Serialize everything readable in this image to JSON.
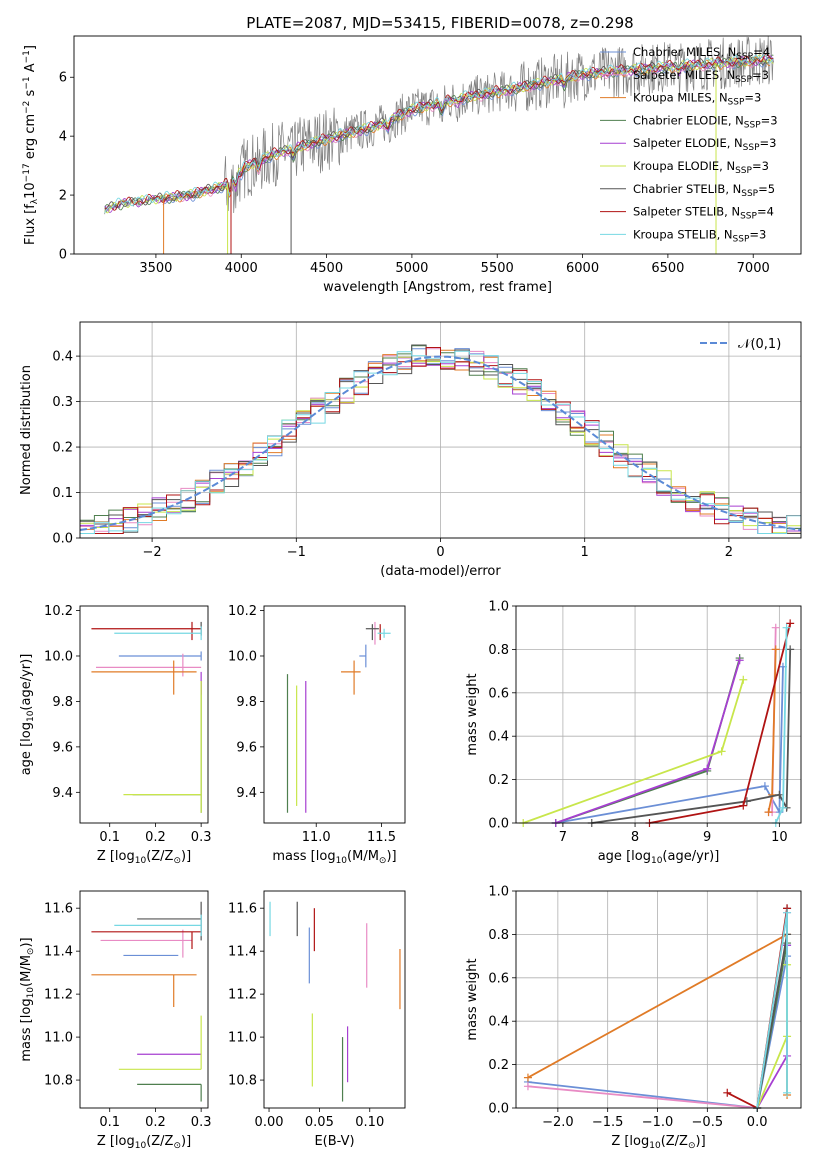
{
  "colors": {
    "Chabrier MILES": "#6b8fd6",
    "Salpeter MILES": "#e88bc4",
    "Kroupa MILES": "#e07b27",
    "Chabrier ELODIE": "#4f7f4f",
    "Salpeter ELODIE": "#a63fd1",
    "Kroupa ELODIE": "#c8e64b",
    "Chabrier STELIB": "#555555",
    "Salpeter STELIB": "#b01313",
    "Kroupa STELIB": "#76d8e3",
    "data": "#808080",
    "normal": "#5b8ad6"
  },
  "chart_data": [
    {
      "type": "line",
      "title": "PLATE=2087, MJD=53415, FIBERID=0078, z=0.298",
      "xlabel": "wavelength [Angstrom, rest frame]",
      "ylabel": "Flux [f$_\\lambda$10$^{-17}$ erg cm$^{-2}$ s$^{-1}$ A$^{-1}$]",
      "xlim": [
        3020,
        7280
      ],
      "ylim": [
        0,
        7.4
      ],
      "xticks": [
        3500,
        4000,
        4500,
        5000,
        5500,
        6000,
        6500,
        7000
      ],
      "yticks": [
        0,
        2,
        4,
        6
      ],
      "legend_position": "upper right",
      "series_labels": [
        "Chabrier MILES, N$_{SSP}$=4",
        "Salpeter MILES, N$_{SSP}$=3",
        "Kroupa MILES, N$_{SSP}$=3",
        "Chabrier ELODIE, N$_{SSP}$=3",
        "Salpeter ELODIE, N$_{SSP}$=3",
        "Kroupa ELODIE, N$_{SSP}$=3",
        "Chabrier STELIB, N$_{SSP}$=5",
        "Salpeter STELIB, N$_{SSP}$=4",
        "Kroupa STELIB, N$_{SSP}$=3"
      ],
      "model_flux_envelope": {
        "wavelength": [
          3200,
          3300,
          3500,
          3700,
          3900,
          4000,
          4200,
          4500,
          4800,
          5000,
          5300,
          5600,
          6000,
          6500,
          7000,
          7100
        ],
        "flux": [
          1.5,
          1.7,
          1.85,
          2.0,
          2.3,
          2.9,
          3.4,
          3.9,
          4.35,
          4.9,
          5.3,
          5.6,
          6.1,
          6.35,
          6.55,
          6.6
        ]
      }
    },
    {
      "type": "bar",
      "xlabel": "(data-model)/error",
      "ylabel": "Normed distribution",
      "xlim": [
        -2.5,
        2.5
      ],
      "ylim": [
        0,
        0.475
      ],
      "xticks": [
        -2,
        -1,
        0,
        1,
        2
      ],
      "yticks": [
        0.0,
        0.1,
        0.2,
        0.3,
        0.4
      ],
      "grid": true,
      "legend": "$\\mathcal{N}(0,1)$",
      "legend_position": "upper right",
      "bin_width": 0.1,
      "mean_hist": [
        0.02,
        0.025,
        0.03,
        0.035,
        0.04,
        0.045,
        0.05,
        0.055,
        0.06,
        0.07,
        0.08,
        0.09,
        0.1,
        0.115,
        0.13,
        0.15,
        0.165,
        0.18,
        0.2,
        0.22,
        0.24,
        0.26,
        0.28,
        0.3,
        0.32,
        0.34,
        0.355,
        0.37,
        0.38,
        0.39,
        0.395,
        0.4,
        0.4,
        0.395,
        0.39,
        0.38,
        0.37,
        0.355,
        0.34,
        0.32,
        0.3,
        0.28,
        0.26,
        0.24,
        0.22,
        0.2,
        0.18,
        0.165,
        0.15,
        0.13,
        0.115,
        0.1,
        0.09,
        0.08,
        0.07,
        0.06,
        0.055,
        0.05,
        0.045,
        0.04,
        0.035,
        0.03,
        0.025,
        0.02,
        0.02,
        0.02,
        0.02,
        0.02,
        0.02,
        0.02,
        0.02,
        0.02
      ]
    },
    {
      "type": "scatter",
      "xlabel": "Z [log$_{10}$(Z/Z$_\\odot$)]",
      "ylabel": "age  [log$_{10}$(age/yr)]",
      "xlim": [
        0.035,
        0.315
      ],
      "ylim": [
        9.265,
        10.22
      ],
      "xticks": [
        0.1,
        0.2,
        0.3
      ],
      "yticks": [
        9.4,
        9.6,
        9.8,
        10.0,
        10.2
      ],
      "points": [
        {
          "model": "Chabrier MILES",
          "Z": 0.3,
          "Zerr": [
            0.18,
            0.0
          ],
          "age": 10.0,
          "ageerr": [
            0.02,
            0.02
          ]
        },
        {
          "model": "Salpeter MILES",
          "Z": 0.26,
          "Zerr": [
            0.19,
            0.04
          ],
          "age": 9.95,
          "ageerr": [
            0.04,
            0.06
          ]
        },
        {
          "model": "Kroupa MILES",
          "Z": 0.24,
          "Zerr": [
            0.18,
            0.05
          ],
          "age": 9.93,
          "ageerr": [
            0.1,
            0.05
          ]
        },
        {
          "model": "Chabrier ELODIE",
          "Z": 0.3,
          "Zerr": [
            0.15,
            0.0
          ],
          "age": 9.39,
          "ageerr": [
            0.08,
            0.5
          ]
        },
        {
          "model": "Salpeter ELODIE",
          "Z": 0.3,
          "Zerr": [
            0.0,
            0.0
          ],
          "age": 9.88,
          "ageerr": [
            0.05,
            0.05
          ]
        },
        {
          "model": "Kroupa ELODIE",
          "Z": 0.3,
          "Zerr": [
            0.17,
            0.0
          ],
          "age": 9.39,
          "ageerr": [
            0.08,
            0.5
          ]
        },
        {
          "model": "Chabrier STELIB",
          "Z": 0.3,
          "Zerr": [
            0.0,
            0.0
          ],
          "age": 10.12,
          "ageerr": [
            0.03,
            0.03
          ]
        },
        {
          "model": "Salpeter STELIB",
          "Z": 0.28,
          "Zerr": [
            0.22,
            0.02
          ],
          "age": 10.12,
          "ageerr": [
            0.05,
            0.03
          ]
        },
        {
          "model": "Kroupa STELIB",
          "Z": 0.3,
          "Zerr": [
            0.19,
            0.0
          ],
          "age": 10.1,
          "ageerr": [
            0.03,
            0.03
          ]
        }
      ]
    },
    {
      "type": "scatter",
      "xlabel": "mass [log$_{10}$(M/M$_\\odot$)]",
      "ylabel": "",
      "xlim": [
        10.6,
        11.68
      ],
      "ylim": [
        9.265,
        10.22
      ],
      "xticks": [
        11.0,
        11.5
      ],
      "yticks": [
        9.4,
        9.6,
        9.8,
        10.0,
        10.2
      ],
      "points": [
        {
          "model": "Chabrier MILES",
          "mass": 11.38,
          "masserr": [
            0.05,
            0.0
          ],
          "age": 10.0,
          "ageerr": [
            0.05,
            0.05
          ]
        },
        {
          "model": "Salpeter MILES",
          "mass": 11.45,
          "masserr": [
            0.0,
            0.0
          ],
          "age": 10.1,
          "ageerr": [
            0.05,
            0.05
          ]
        },
        {
          "model": "Kroupa MILES",
          "mass": 11.29,
          "masserr": [
            0.1,
            0.05
          ],
          "age": 9.93,
          "ageerr": [
            0.1,
            0.05
          ]
        },
        {
          "model": "Chabrier ELODIE",
          "mass": 10.78,
          "masserr": [
            0.0,
            0.0
          ],
          "age": 9.39,
          "ageerr": [
            0.08,
            0.53
          ]
        },
        {
          "model": "Salpeter ELODIE",
          "mass": 10.92,
          "masserr": [
            0.0,
            0.0
          ],
          "age": 9.39,
          "ageerr": [
            0.08,
            0.5
          ]
        },
        {
          "model": "Kroupa ELODIE",
          "mass": 10.85,
          "masserr": [
            0.0,
            0.0
          ],
          "age": 9.39,
          "ageerr": [
            0.05,
            0.48
          ]
        },
        {
          "model": "Chabrier STELIB",
          "mass": 11.43,
          "masserr": [
            0.05,
            0.05
          ],
          "age": 10.12,
          "ageerr": [
            0.05,
            0.02
          ]
        },
        {
          "model": "Salpeter STELIB",
          "mass": 11.49,
          "masserr": [
            0.0,
            0.0
          ],
          "age": 10.12,
          "ageerr": [
            0.05,
            0.02
          ]
        },
        {
          "model": "Kroupa STELIB",
          "mass": 11.52,
          "masserr": [
            0.05,
            0.05
          ],
          "age": 10.1,
          "ageerr": [
            0.02,
            0.02
          ]
        }
      ]
    },
    {
      "type": "line",
      "xlabel": "age  [log$_{10}$(age/yr)]",
      "ylabel": "mass weight",
      "xlim": [
        6.35,
        10.3
      ],
      "ylim": [
        0,
        1.0
      ],
      "xticks": [
        7,
        8,
        9,
        10
      ],
      "yticks": [
        0.0,
        0.2,
        0.4,
        0.6,
        0.8,
        1.0
      ],
      "grid": true,
      "series": [
        {
          "name": "Chabrier MILES",
          "x": [
            6.9,
            9.8,
            10.0,
            10.05
          ],
          "y": [
            0.0,
            0.17,
            0.05,
            0.72
          ]
        },
        {
          "name": "Salpeter MILES",
          "x": [
            9.85,
            9.9,
            9.95
          ],
          "y": [
            0.05,
            0.05,
            0.9
          ]
        },
        {
          "name": "Kroupa MILES",
          "x": [
            9.85,
            9.9,
            9.95
          ],
          "y": [
            0.05,
            0.13,
            0.8
          ]
        },
        {
          "name": "Chabrier ELODIE",
          "x": [
            6.9,
            9.0,
            9.45
          ],
          "y": [
            0.0,
            0.24,
            0.76
          ]
        },
        {
          "name": "Salpeter ELODIE",
          "x": [
            6.9,
            9.0,
            9.45
          ],
          "y": [
            0.0,
            0.25,
            0.75
          ]
        },
        {
          "name": "Kroupa ELODIE",
          "x": [
            6.45,
            9.2,
            9.5
          ],
          "y": [
            0.0,
            0.33,
            0.66
          ]
        },
        {
          "name": "Chabrier STELIB",
          "x": [
            7.4,
            9.55,
            10.0,
            10.1,
            10.15
          ],
          "y": [
            0.0,
            0.1,
            0.13,
            0.07,
            0.8
          ]
        },
        {
          "name": "Salpeter STELIB",
          "x": [
            8.2,
            9.5,
            10.15
          ],
          "y": [
            0.0,
            0.08,
            0.92
          ]
        },
        {
          "name": "Kroupa STELIB",
          "x": [
            9.95,
            10.05,
            10.1
          ],
          "y": [
            0.0,
            0.07,
            0.9
          ]
        }
      ]
    },
    {
      "type": "scatter",
      "xlabel": "Z [log$_{10}$(Z/Z$_\\odot$)]",
      "ylabel": "mass [log$_{10}$(M/M$_\\odot$)]",
      "xlim": [
        0.035,
        0.315
      ],
      "ylim": [
        10.67,
        11.68
      ],
      "xticks": [
        0.1,
        0.2,
        0.3
      ],
      "yticks": [
        10.8,
        11.0,
        11.2,
        11.4,
        11.6
      ],
      "points": [
        {
          "model": "Chabrier MILES",
          "Z": 0.25,
          "Zerr": [
            0.12,
            0.0
          ],
          "mass": 11.38,
          "masserr": [
            0.0,
            0.0
          ]
        },
        {
          "model": "Salpeter MILES",
          "Z": 0.26,
          "Zerr": [
            0.18,
            0.02
          ],
          "mass": 11.45,
          "masserr": [
            0.08,
            0.05
          ]
        },
        {
          "model": "Kroupa MILES",
          "Z": 0.24,
          "Zerr": [
            0.18,
            0.05
          ],
          "mass": 11.29,
          "masserr": [
            0.15,
            0.0
          ]
        },
        {
          "model": "Chabrier ELODIE",
          "Z": 0.3,
          "Zerr": [
            0.14,
            0.0
          ],
          "mass": 10.78,
          "masserr": [
            0.08,
            0.0
          ]
        },
        {
          "model": "Salpeter ELODIE",
          "Z": 0.3,
          "Zerr": [
            0.14,
            0.0
          ],
          "mass": 10.92,
          "masserr": [
            0.0,
            0.0
          ]
        },
        {
          "model": "Kroupa ELODIE",
          "Z": 0.3,
          "Zerr": [
            0.18,
            0.0
          ],
          "mass": 10.85,
          "masserr": [
            0.0,
            0.25
          ]
        },
        {
          "model": "Chabrier STELIB",
          "Z": 0.3,
          "Zerr": [
            0.14,
            0.0
          ],
          "mass": 11.55,
          "masserr": [
            0.1,
            0.08
          ]
        },
        {
          "model": "Salpeter STELIB",
          "Z": 0.28,
          "Zerr": [
            0.22,
            0.02
          ],
          "mass": 11.49,
          "masserr": [
            0.08,
            0.0
          ]
        },
        {
          "model": "Kroupa STELIB",
          "Z": 0.3,
          "Zerr": [
            0.19,
            0.0
          ],
          "mass": 11.52,
          "masserr": [
            0.05,
            0.05
          ]
        }
      ]
    },
    {
      "type": "scatter",
      "xlabel": "E(B-V)",
      "ylabel": "",
      "xlim": [
        -0.005,
        0.135
      ],
      "ylim": [
        10.67,
        11.68
      ],
      "xticks": [
        0.0,
        0.05,
        0.1
      ],
      "yticks": [
        10.8,
        11.0,
        11.2,
        11.4,
        11.6
      ],
      "points": [
        {
          "model": "Chabrier MILES",
          "ebv": 0.04,
          "mass": 11.38,
          "masserr": [
            0.13,
            0.13
          ]
        },
        {
          "model": "Salpeter MILES",
          "ebv": 0.097,
          "mass": 11.38,
          "masserr": [
            0.15,
            0.15
          ]
        },
        {
          "model": "Kroupa MILES",
          "ebv": 0.13,
          "mass": 11.27,
          "masserr": [
            0.14,
            0.14
          ]
        },
        {
          "model": "Chabrier ELODIE",
          "ebv": 0.073,
          "mass": 10.85,
          "masserr": [
            0.15,
            0.15
          ]
        },
        {
          "model": "Salpeter ELODIE",
          "ebv": 0.078,
          "mass": 10.92,
          "masserr": [
            0.13,
            0.13
          ]
        },
        {
          "model": "Kroupa ELODIE",
          "ebv": 0.043,
          "mass": 10.94,
          "masserr": [
            0.17,
            0.17
          ]
        },
        {
          "model": "Chabrier STELIB",
          "ebv": 0.028,
          "mass": 11.55,
          "masserr": [
            0.08,
            0.08
          ]
        },
        {
          "model": "Salpeter STELIB",
          "ebv": 0.045,
          "mass": 11.5,
          "masserr": [
            0.1,
            0.1
          ]
        },
        {
          "model": "Kroupa STELIB",
          "ebv": 0.001,
          "mass": 11.55,
          "masserr": [
            0.08,
            0.08
          ]
        }
      ]
    },
    {
      "type": "line",
      "xlabel": "Z [log$_{10}$(Z/Z$_\\odot$)]",
      "ylabel": "mass weight",
      "xlim": [
        -2.42,
        0.44
      ],
      "ylim": [
        0,
        1.0
      ],
      "xticks": [
        -2.0,
        -1.5,
        -1.0,
        -0.5,
        0.0
      ],
      "yticks": [
        0.0,
        0.2,
        0.4,
        0.6,
        0.8,
        1.0
      ],
      "grid": true,
      "series": [
        {
          "name": "Chabrier MILES",
          "x": [
            -2.3,
            0.0,
            0.3,
            0.3
          ],
          "y": [
            0.12,
            0.0,
            0.7,
            0.75
          ]
        },
        {
          "name": "Salpeter MILES",
          "x": [
            -2.3,
            0.0,
            0.3
          ],
          "y": [
            0.1,
            0.0,
            0.9
          ]
        },
        {
          "name": "Kroupa MILES",
          "x": [
            -2.3,
            0.3,
            0.3
          ],
          "y": [
            0.14,
            0.8,
            0.06
          ]
        },
        {
          "name": "Chabrier ELODIE",
          "x": [
            0.0,
            0.3
          ],
          "y": [
            0.0,
            0.76
          ]
        },
        {
          "name": "Salpeter ELODIE",
          "x": [
            0.0,
            0.3,
            0.3
          ],
          "y": [
            0.0,
            0.24,
            0.75
          ]
        },
        {
          "name": "Kroupa ELODIE",
          "x": [
            0.0,
            0.3,
            0.3
          ],
          "y": [
            0.0,
            0.33,
            0.66
          ]
        },
        {
          "name": "Chabrier STELIB",
          "x": [
            0.0,
            0.3,
            0.3
          ],
          "y": [
            0.0,
            0.8,
            0.92
          ]
        },
        {
          "name": "Salpeter STELIB",
          "x": [
            -0.3,
            0.0,
            0.3
          ],
          "y": [
            0.07,
            0.0,
            0.92
          ]
        },
        {
          "name": "Kroupa STELIB",
          "x": [
            0.0,
            0.3,
            0.3
          ],
          "y": [
            0.0,
            0.9,
            0.07
          ]
        }
      ]
    }
  ]
}
